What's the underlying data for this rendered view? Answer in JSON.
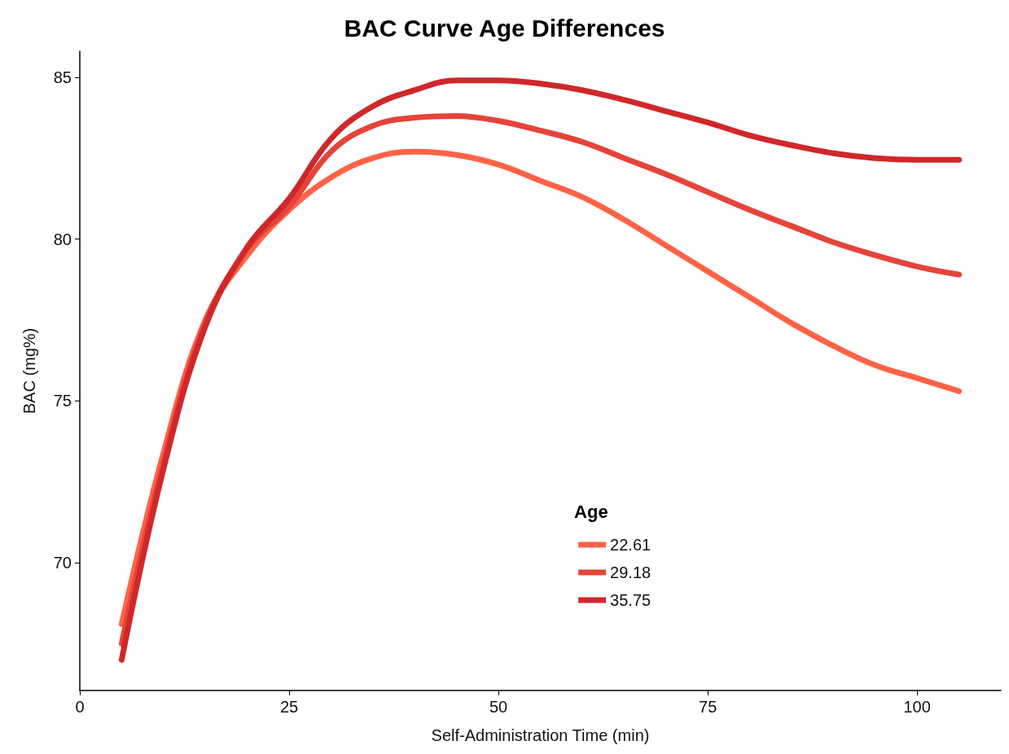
{
  "chart_data": {
    "type": "line",
    "title": "BAC Curve Age Differences",
    "xlabel": "Self-Administration Time (min)",
    "ylabel": "BAC (mg%)",
    "legend_title": "Age",
    "legend": "bottom",
    "grid": false,
    "marker": "none",
    "line_style": "solid",
    "x": [
      5,
      10,
      15,
      20,
      25,
      30,
      35,
      40,
      45,
      50,
      55,
      60,
      65,
      70,
      75,
      80,
      85,
      90,
      95,
      100,
      105
    ],
    "xlim": [
      0,
      110
    ],
    "xticks": [
      0,
      25,
      50,
      75,
      100
    ],
    "ylim": [
      66.05,
      85.8
    ],
    "yticks": [
      70,
      75,
      80,
      85
    ],
    "series": [
      {
        "name": "22.61",
        "color": "#ff6347",
        "values": [
          68.1,
          73.4,
          77.5,
          79.5,
          80.9,
          81.9,
          82.5,
          82.7,
          82.6,
          82.3,
          81.8,
          81.3,
          80.6,
          79.8,
          79.0,
          78.2,
          77.4,
          76.7,
          76.1,
          75.7,
          75.3
        ]
      },
      {
        "name": "29.18",
        "color": "#e6443a",
        "values": [
          67.5,
          73.1,
          77.4,
          79.7,
          81.0,
          82.7,
          83.5,
          83.75,
          83.8,
          83.65,
          83.35,
          83.0,
          82.5,
          82.0,
          81.45,
          80.9,
          80.4,
          79.9,
          79.5,
          79.15,
          78.9
        ]
      },
      {
        "name": "35.75",
        "color": "#d0282a",
        "values": [
          67.0,
          72.9,
          77.3,
          79.75,
          81.25,
          83.1,
          84.1,
          84.6,
          84.9,
          84.9,
          84.8,
          84.6,
          84.3,
          83.95,
          83.6,
          83.2,
          82.9,
          82.65,
          82.5,
          82.45,
          82.45
        ]
      }
    ]
  }
}
